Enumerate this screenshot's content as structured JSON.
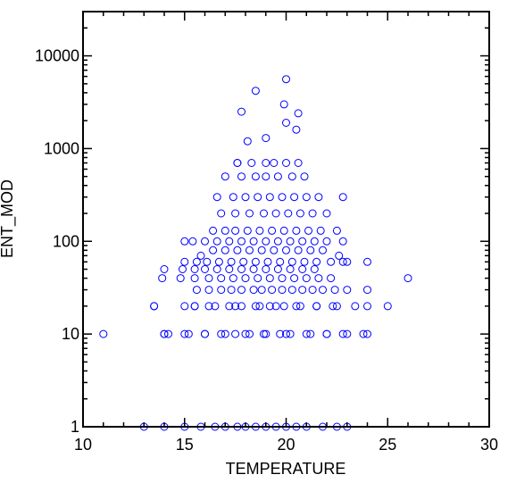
{
  "chart_data": {
    "type": "scatter",
    "title": "",
    "xlabel": "TEMPERATURE",
    "ylabel": "ENT_MOD",
    "xlim": [
      10,
      30
    ],
    "ylim": [
      1,
      30000
    ],
    "yscale": "log",
    "grid": false,
    "legend": "none",
    "marker": "open-circle",
    "color": "#0000ff",
    "x_ticks": [
      "10",
      "15",
      "20",
      "25",
      "30"
    ],
    "y_ticks": [
      "1",
      "10",
      "100",
      "1000",
      "10000"
    ],
    "series": [
      {
        "x": [
          11.0,
          13.0,
          13.5,
          13.9,
          14.0,
          14.2,
          14.8,
          15.0,
          15.2,
          15.5,
          15.8,
          16.0,
          16.2,
          16.5,
          16.8,
          17.0,
          17.2,
          17.5,
          17.6,
          17.8,
          18.0,
          18.2,
          18.5,
          18.7,
          18.9,
          19.0,
          19.2,
          19.5,
          19.7,
          19.9,
          20.0,
          20.2,
          20.5,
          20.7,
          21.0,
          21.2,
          21.5,
          21.8,
          22.0,
          22.3,
          22.5,
          22.8,
          23.0,
          23.4,
          23.8,
          24.0,
          14.0,
          15.0,
          15.6,
          16.2,
          16.8,
          17.3,
          17.8,
          18.4,
          18.8,
          19.3,
          19.8,
          20.3,
          20.8,
          21.3,
          21.8,
          22.4,
          23.0,
          24.0,
          25.0,
          13.5,
          14.0,
          15.0,
          15.5,
          16.0,
          16.5,
          17.0,
          17.5,
          18.0,
          18.5,
          19.0,
          19.5,
          20.0,
          20.5,
          21.0,
          21.5,
          22.0,
          22.5,
          23.0,
          24.0,
          15.5,
          16.2,
          16.8,
          17.4,
          18.0,
          18.6,
          19.2,
          19.8,
          20.4,
          21.0,
          21.6,
          22.2,
          14.0,
          14.9,
          15.5,
          16.0,
          16.6,
          17.2,
          17.8,
          18.4,
          19.0,
          19.6,
          20.2,
          20.8,
          21.4,
          23.0,
          24.0,
          26.0,
          15.0,
          15.6,
          16.1,
          16.7,
          17.3,
          17.9,
          18.5,
          19.1,
          19.7,
          20.3,
          20.9,
          21.5,
          22.2,
          22.8,
          15.8,
          16.4,
          17.0,
          17.6,
          18.2,
          18.8,
          19.4,
          20.0,
          20.6,
          21.2,
          21.8,
          22.6,
          15.0,
          15.4,
          16.0,
          16.6,
          17.2,
          17.8,
          18.4,
          19.0,
          19.6,
          20.2,
          20.8,
          21.4,
          22.0,
          22.8,
          16.4,
          17.0,
          17.5,
          18.1,
          18.7,
          19.3,
          19.9,
          20.5,
          21.1,
          21.7,
          22.5,
          16.8,
          17.5,
          18.2,
          18.9,
          19.5,
          20.1,
          20.7,
          21.3,
          22.0,
          16.6,
          17.4,
          18.0,
          18.6,
          19.2,
          19.8,
          20.4,
          21.0,
          21.6,
          22.8,
          17.0,
          17.8,
          18.5,
          19.0,
          19.6,
          20.3,
          20.9,
          17.6,
          18.3,
          19.0,
          19.4,
          20.0,
          20.6,
          17.6,
          18.1,
          19.0,
          20.0,
          20.5,
          20.6,
          19.9,
          17.8,
          18.5,
          20.0
        ],
        "y": [
          10,
          1,
          20,
          40,
          1,
          10,
          40,
          1,
          10,
          20,
          1,
          10,
          20,
          1,
          10,
          1,
          20,
          10,
          1,
          20,
          1,
          10,
          1,
          20,
          10,
          1,
          20,
          1,
          10,
          20,
          1,
          10,
          1,
          20,
          1,
          10,
          20,
          1,
          10,
          20,
          1,
          10,
          1,
          20,
          10,
          20,
          10,
          20,
          30,
          30,
          30,
          30,
          30,
          30,
          30,
          30,
          30,
          30,
          30,
          30,
          30,
          30,
          30,
          30,
          20,
          20,
          10,
          10,
          20,
          10,
          20,
          10,
          20,
          10,
          20,
          10,
          20,
          10,
          20,
          10,
          20,
          10,
          20,
          10,
          10,
          40,
          40,
          40,
          40,
          40,
          40,
          40,
          40,
          40,
          40,
          40,
          40,
          50,
          50,
          50,
          50,
          50,
          50,
          50,
          50,
          50,
          50,
          50,
          50,
          50,
          60,
          60,
          40,
          60,
          60,
          60,
          60,
          60,
          60,
          60,
          60,
          60,
          60,
          60,
          60,
          60,
          60,
          70,
          80,
          80,
          80,
          80,
          80,
          80,
          80,
          80,
          80,
          80,
          70,
          100,
          100,
          100,
          100,
          100,
          100,
          100,
          100,
          100,
          100,
          100,
          100,
          100,
          100,
          130,
          130,
          130,
          130,
          130,
          130,
          130,
          130,
          130,
          130,
          130,
          200,
          200,
          200,
          200,
          200,
          200,
          200,
          200,
          200,
          300,
          300,
          300,
          300,
          300,
          300,
          300,
          300,
          300,
          300,
          500,
          500,
          500,
          500,
          500,
          500,
          500,
          700,
          700,
          700,
          700,
          700,
          700,
          700,
          1200,
          1300,
          1900,
          1600,
          2400,
          3000,
          2500,
          4200,
          5600
        ]
      }
    ]
  }
}
